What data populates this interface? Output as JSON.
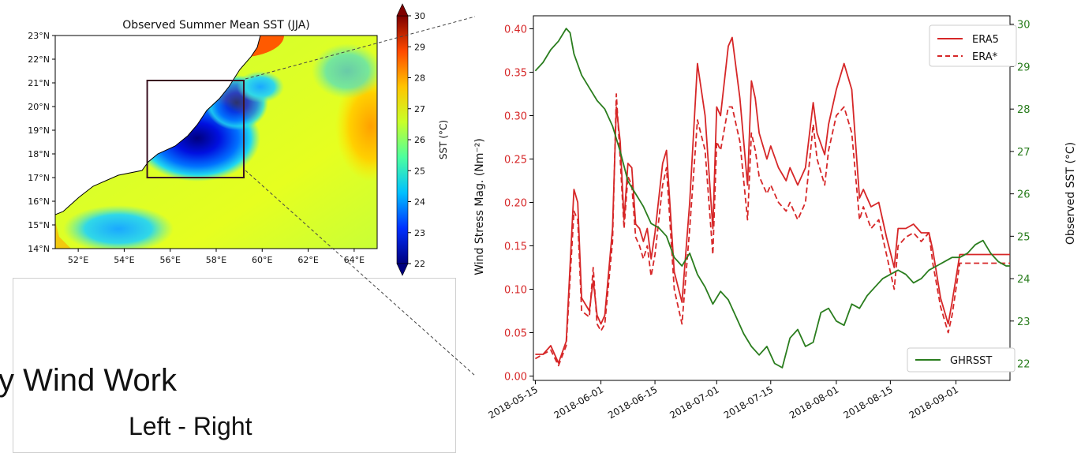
{
  "map": {
    "title": "Observed Summer Mean SST (JJA)",
    "lat_labels": [
      "23°N",
      "22°N",
      "21°N",
      "20°N",
      "19°N",
      "18°N",
      "17°N",
      "16°N",
      "15°N",
      "14°N"
    ],
    "lon_labels": [
      "52°E",
      "54°E",
      "56°E",
      "58°E",
      "60°E",
      "62°E",
      "64°E"
    ],
    "colorbar": {
      "label": "SST (°C)",
      "ticks": [
        "30",
        "29",
        "28",
        "27",
        "26",
        "25",
        "24",
        "23",
        "22"
      ],
      "range": [
        22,
        30
      ],
      "colors": [
        "#00007f",
        "#0030ff",
        "#00c0ff",
        "#4cff9f",
        "#c8ff2a",
        "#ffc400",
        "#ff4a00",
        "#7f0000"
      ]
    },
    "box": {
      "lon": [
        55.0,
        59.2
      ],
      "lat": [
        17.0,
        21.1
      ]
    },
    "box_color": "#3a1020"
  },
  "chart_data": {
    "type": "line",
    "x_ticks": [
      "2018-05-15",
      "2018-06-01",
      "2018-06-15",
      "2018-07-01",
      "2018-07-15",
      "2018-08-01",
      "2018-08-15",
      "2018-09-01"
    ],
    "y_left": {
      "label": "Wind Stress Mag. (Nm⁻²)",
      "ticks": [
        "0.00",
        "0.05",
        "0.10",
        "0.15",
        "0.20",
        "0.25",
        "0.30",
        "0.35",
        "0.40"
      ],
      "range": [
        -0.005,
        0.415
      ],
      "color": "#d62728"
    },
    "y_right": {
      "label": "Observed SST (°C)",
      "ticks": [
        "22",
        "23",
        "24",
        "25",
        "26",
        "27",
        "28",
        "29",
        "30"
      ],
      "range": [
        21.6,
        30.2
      ],
      "color": "#2a7d1e"
    },
    "x_range_days": [
      -0.5,
      123
    ],
    "series": [
      {
        "name": "ERA5",
        "axis": "left",
        "style": "solid",
        "color": "#d62728",
        "x": [
          0,
          2,
          4,
          6,
          8,
          10,
          11,
          12,
          14,
          15,
          16,
          17,
          18,
          20,
          21,
          22,
          23,
          24,
          25,
          26,
          27,
          28,
          29,
          30,
          31,
          33,
          34,
          36,
          38,
          40,
          42,
          44,
          46,
          47,
          48,
          50,
          51,
          53,
          55,
          56,
          57,
          58,
          60,
          61,
          63,
          65,
          66,
          68,
          70,
          72,
          73,
          75,
          76,
          78,
          80,
          82,
          84,
          85,
          87,
          89,
          91,
          93,
          94,
          96,
          98,
          100,
          102,
          103,
          105,
          107,
          108,
          110,
          112,
          114,
          116,
          118,
          120,
          122,
          123
        ],
        "y": [
          0.025,
          0.025,
          0.035,
          0.015,
          0.04,
          0.215,
          0.2,
          0.09,
          0.075,
          0.11,
          0.07,
          0.06,
          0.07,
          0.17,
          0.31,
          0.27,
          0.18,
          0.245,
          0.24,
          0.175,
          0.17,
          0.155,
          0.17,
          0.135,
          0.165,
          0.245,
          0.26,
          0.12,
          0.085,
          0.2,
          0.36,
          0.3,
          0.17,
          0.31,
          0.3,
          0.38,
          0.39,
          0.32,
          0.22,
          0.34,
          0.32,
          0.28,
          0.25,
          0.265,
          0.24,
          0.225,
          0.24,
          0.22,
          0.24,
          0.315,
          0.28,
          0.255,
          0.29,
          0.33,
          0.36,
          0.33,
          0.205,
          0.215,
          0.195,
          0.2,
          0.16,
          0.125,
          0.17,
          0.17,
          0.175,
          0.165,
          0.165,
          0.145,
          0.09,
          0.06,
          0.085,
          0.14,
          0.14,
          0.14,
          0.14,
          0.14,
          0.14,
          0.14,
          0.14
        ]
      },
      {
        "name": "ERA*",
        "axis": "left",
        "style": "dashed",
        "color": "#d62728",
        "x": [
          0,
          2,
          4,
          6,
          8,
          10,
          11,
          12,
          14,
          15,
          16,
          17,
          18,
          20,
          21,
          22,
          23,
          24,
          25,
          26,
          27,
          28,
          29,
          30,
          31,
          33,
          34,
          36,
          38,
          40,
          42,
          44,
          46,
          47,
          48,
          50,
          51,
          53,
          55,
          56,
          57,
          58,
          60,
          61,
          63,
          65,
          66,
          68,
          70,
          72,
          73,
          75,
          76,
          78,
          80,
          82,
          84,
          85,
          87,
          89,
          91,
          93,
          94,
          96,
          98,
          100,
          102,
          103,
          105,
          107,
          108,
          110,
          112,
          114,
          116,
          118,
          120,
          122,
          123
        ],
        "y": [
          0.02,
          0.025,
          0.03,
          0.012,
          0.035,
          0.19,
          0.18,
          0.075,
          0.068,
          0.125,
          0.06,
          0.052,
          0.06,
          0.155,
          0.325,
          0.25,
          0.17,
          0.23,
          0.22,
          0.16,
          0.15,
          0.135,
          0.15,
          0.115,
          0.14,
          0.22,
          0.24,
          0.1,
          0.06,
          0.17,
          0.295,
          0.26,
          0.14,
          0.27,
          0.26,
          0.31,
          0.31,
          0.27,
          0.18,
          0.28,
          0.26,
          0.23,
          0.21,
          0.22,
          0.2,
          0.19,
          0.2,
          0.18,
          0.2,
          0.29,
          0.25,
          0.22,
          0.26,
          0.3,
          0.31,
          0.28,
          0.18,
          0.195,
          0.17,
          0.18,
          0.14,
          0.1,
          0.15,
          0.16,
          0.165,
          0.155,
          0.165,
          0.13,
          0.08,
          0.05,
          0.07,
          0.13,
          0.13,
          0.13,
          0.13,
          0.13,
          0.13,
          0.13,
          0.13
        ]
      },
      {
        "name": "GHRSST",
        "axis": "right",
        "style": "solid",
        "color": "#2a7d1e",
        "x": [
          0,
          2,
          4,
          6,
          8,
          9,
          10,
          12,
          14,
          16,
          18,
          20,
          22,
          24,
          26,
          28,
          30,
          32,
          34,
          36,
          38,
          40,
          42,
          44,
          46,
          48,
          50,
          52,
          54,
          56,
          58,
          60,
          62,
          64,
          66,
          68,
          70,
          72,
          74,
          76,
          78,
          80,
          82,
          84,
          86,
          88,
          90,
          92,
          94,
          96,
          98,
          100,
          102,
          104,
          106,
          108,
          110,
          112,
          114,
          116,
          118,
          120,
          122,
          123
        ],
        "y": [
          28.9,
          29.1,
          29.4,
          29.6,
          29.9,
          29.8,
          29.3,
          28.8,
          28.5,
          28.2,
          28.0,
          27.6,
          27.0,
          26.3,
          26.0,
          25.7,
          25.3,
          25.2,
          25.0,
          24.5,
          24.3,
          24.6,
          24.1,
          23.8,
          23.4,
          23.7,
          23.5,
          23.1,
          22.7,
          22.4,
          22.2,
          22.4,
          22.0,
          21.9,
          22.6,
          22.8,
          22.4,
          22.5,
          23.2,
          23.3,
          23.0,
          22.9,
          23.4,
          23.3,
          23.6,
          23.8,
          24.0,
          24.1,
          24.2,
          24.1,
          23.9,
          24.0,
          24.2,
          24.3,
          24.4,
          24.5,
          24.5,
          24.6,
          24.8,
          24.9,
          24.6,
          24.4,
          24.3,
          24.3
        ]
      }
    ],
    "legend_top": [
      "ERA5",
      "ERA*"
    ],
    "legend_bottom": [
      "GHRSST"
    ]
  },
  "overlay": {
    "line1": "y Wind Work",
    "line2": "Left - Right"
  }
}
